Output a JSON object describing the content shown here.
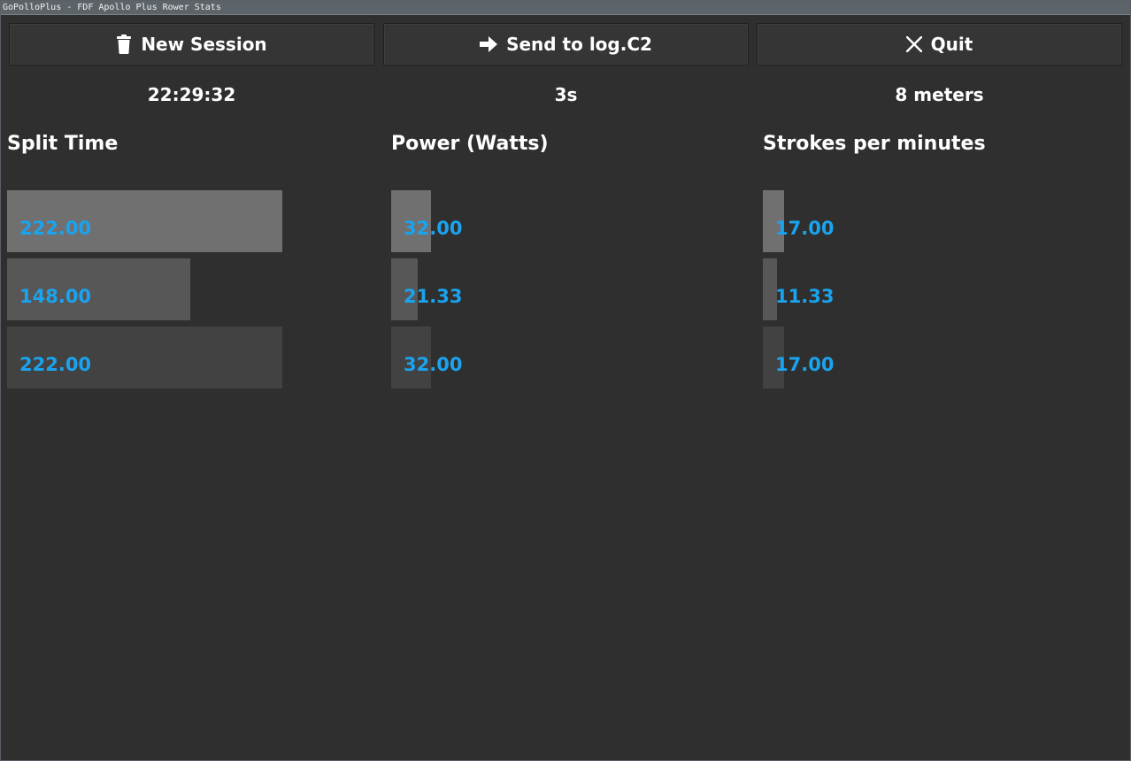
{
  "window": {
    "title": "GoPolloPlus - FDF Apollo Plus Rower Stats"
  },
  "toolbar": {
    "new_session": {
      "label": "New Session",
      "icon": "trash-icon"
    },
    "send_log": {
      "label": "Send to log.C2",
      "icon": "arrow-right-icon"
    },
    "quit": {
      "label": "Quit",
      "icon": "close-icon"
    }
  },
  "info": {
    "clock": "22:29:32",
    "elapsed": "3s",
    "distance": "8 meters"
  },
  "columns": [
    {
      "title": "Split Time",
      "rows": [
        {
          "label": "222.00",
          "value": 222.0
        },
        {
          "label": "148.00",
          "value": 148.0
        },
        {
          "label": "222.00",
          "value": 222.0
        }
      ]
    },
    {
      "title": "Power (Watts)",
      "rows": [
        {
          "label": "32.00",
          "value": 32.0
        },
        {
          "label": "21.33",
          "value": 21.33
        },
        {
          "label": "32.00",
          "value": 32.0
        }
      ]
    },
    {
      "title": "Strokes per minutes",
      "rows": [
        {
          "label": "17.00",
          "value": 17.0
        },
        {
          "label": "11.33",
          "value": 11.33
        },
        {
          "label": "17.00",
          "value": 17.0
        }
      ]
    }
  ],
  "colors": {
    "background": "#2f2f2f",
    "value_text": "#1aa3ef",
    "row_bars": [
      "#707070",
      "#575757",
      "#424242"
    ]
  }
}
